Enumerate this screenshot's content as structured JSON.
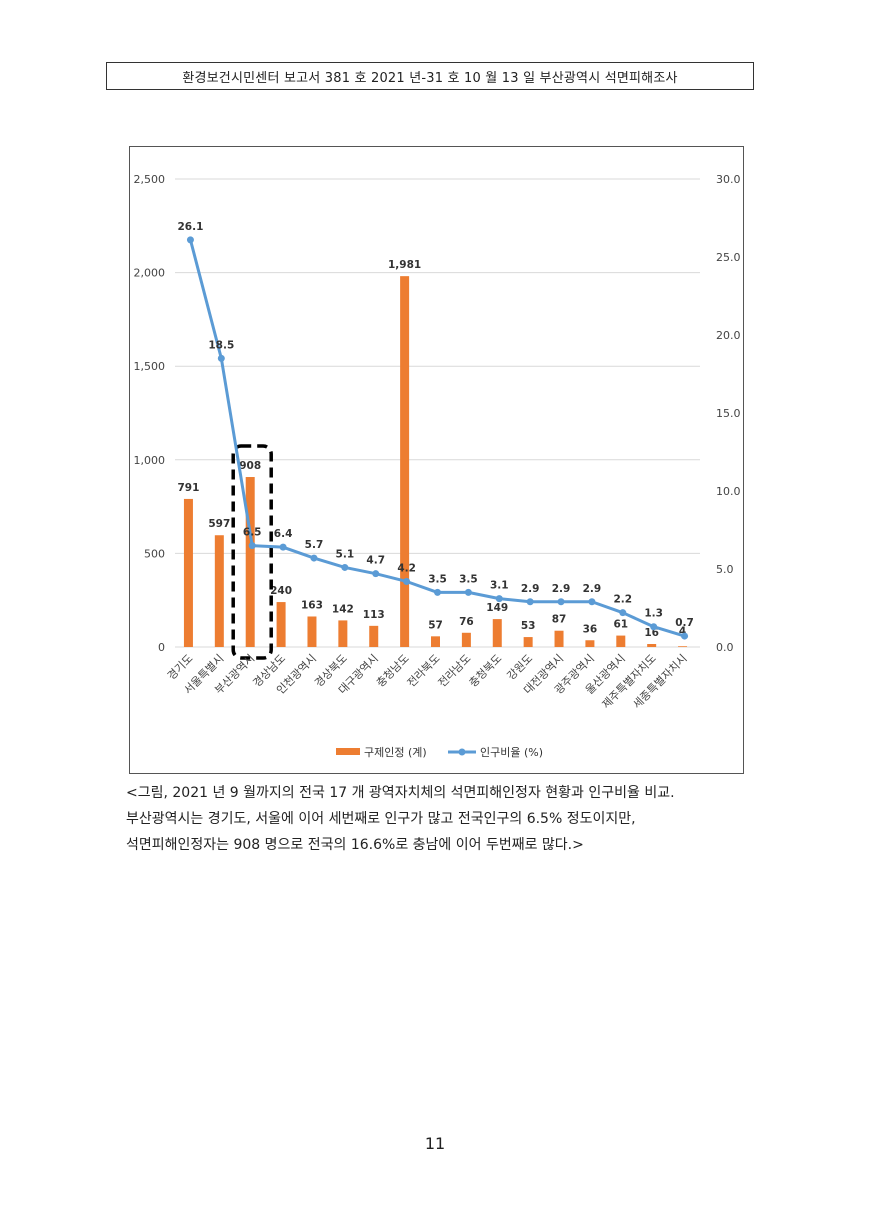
{
  "header": {
    "text": "환경보건시민센터 보고서 381 호 2021 년-31 호 10 월 13 일 부산광역시 석면피해조사"
  },
  "colors": {
    "bar": "#ED7D31",
    "line": "#5B9BD5",
    "grid": "#d9d9d9"
  },
  "chart_data": {
    "type": "bar",
    "categories": [
      "경기도",
      "서울특별시",
      "부산광역시",
      "경상남도",
      "인천광역시",
      "경상북도",
      "대구광역시",
      "충청남도",
      "전라북도",
      "전라남도",
      "충청북도",
      "강원도",
      "대전광역시",
      "광주광역시",
      "울산광역시",
      "제주특별자치도",
      "세종특별자치시"
    ],
    "series": [
      {
        "name": "구제인정 (계)",
        "type": "bar",
        "axis": "left",
        "values": [
          791,
          597,
          908,
          240,
          163,
          142,
          113,
          1981,
          57,
          76,
          149,
          53,
          87,
          36,
          61,
          16,
          4
        ],
        "labels": [
          "791",
          "597",
          "908",
          "240",
          "163",
          "142",
          "113",
          "1,981",
          "57",
          "76",
          "149",
          "53",
          "87",
          "36",
          "61",
          "16",
          "4"
        ]
      },
      {
        "name": "인구비율 (%)",
        "type": "line",
        "axis": "right",
        "values": [
          26.1,
          18.5,
          6.5,
          6.4,
          5.7,
          5.1,
          4.7,
          4.2,
          3.5,
          3.5,
          3.1,
          2.9,
          2.9,
          2.9,
          2.2,
          1.3,
          0.7
        ],
        "labels": [
          "26.1",
          "18.5",
          "6.5",
          "6.4",
          "5.7",
          "5.1",
          "4.7",
          "4.2",
          "3.5",
          "3.5",
          "3.1",
          "2.9",
          "2.9",
          "2.9",
          "2.2",
          "1.3",
          "0.7"
        ]
      }
    ],
    "ylim": [
      0,
      2500
    ],
    "yticks": [
      0,
      500,
      1000,
      1500,
      2000,
      2500
    ],
    "ytick_labels": [
      "0",
      "500",
      "1,000",
      "1,500",
      "2,000",
      "2,500"
    ],
    "y2lim": [
      0,
      30
    ],
    "y2ticks": [
      0,
      5,
      10,
      15,
      20,
      25,
      30
    ],
    "y2tick_labels": [
      "0.0",
      "5.0",
      "10.0",
      "15.0",
      "20.0",
      "25.0",
      "30.0"
    ],
    "grid": true,
    "legend": "bottom",
    "highlight_category": "부산광역시"
  },
  "caption": {
    "lines": [
      "<그림, 2021 년 9 월까지의 전국 17 개 광역자치체의 석면피해인정자 현황과 인구비율 비교.",
      "부산광역시는 경기도, 서울에 이어 세번째로 인구가 많고 전국인구의 6.5% 정도이지만,",
      "석면피해인정자는 908 명으로 전국의 16.6%로 충남에 이어 두번째로 많다.>"
    ]
  },
  "page_number": "11"
}
